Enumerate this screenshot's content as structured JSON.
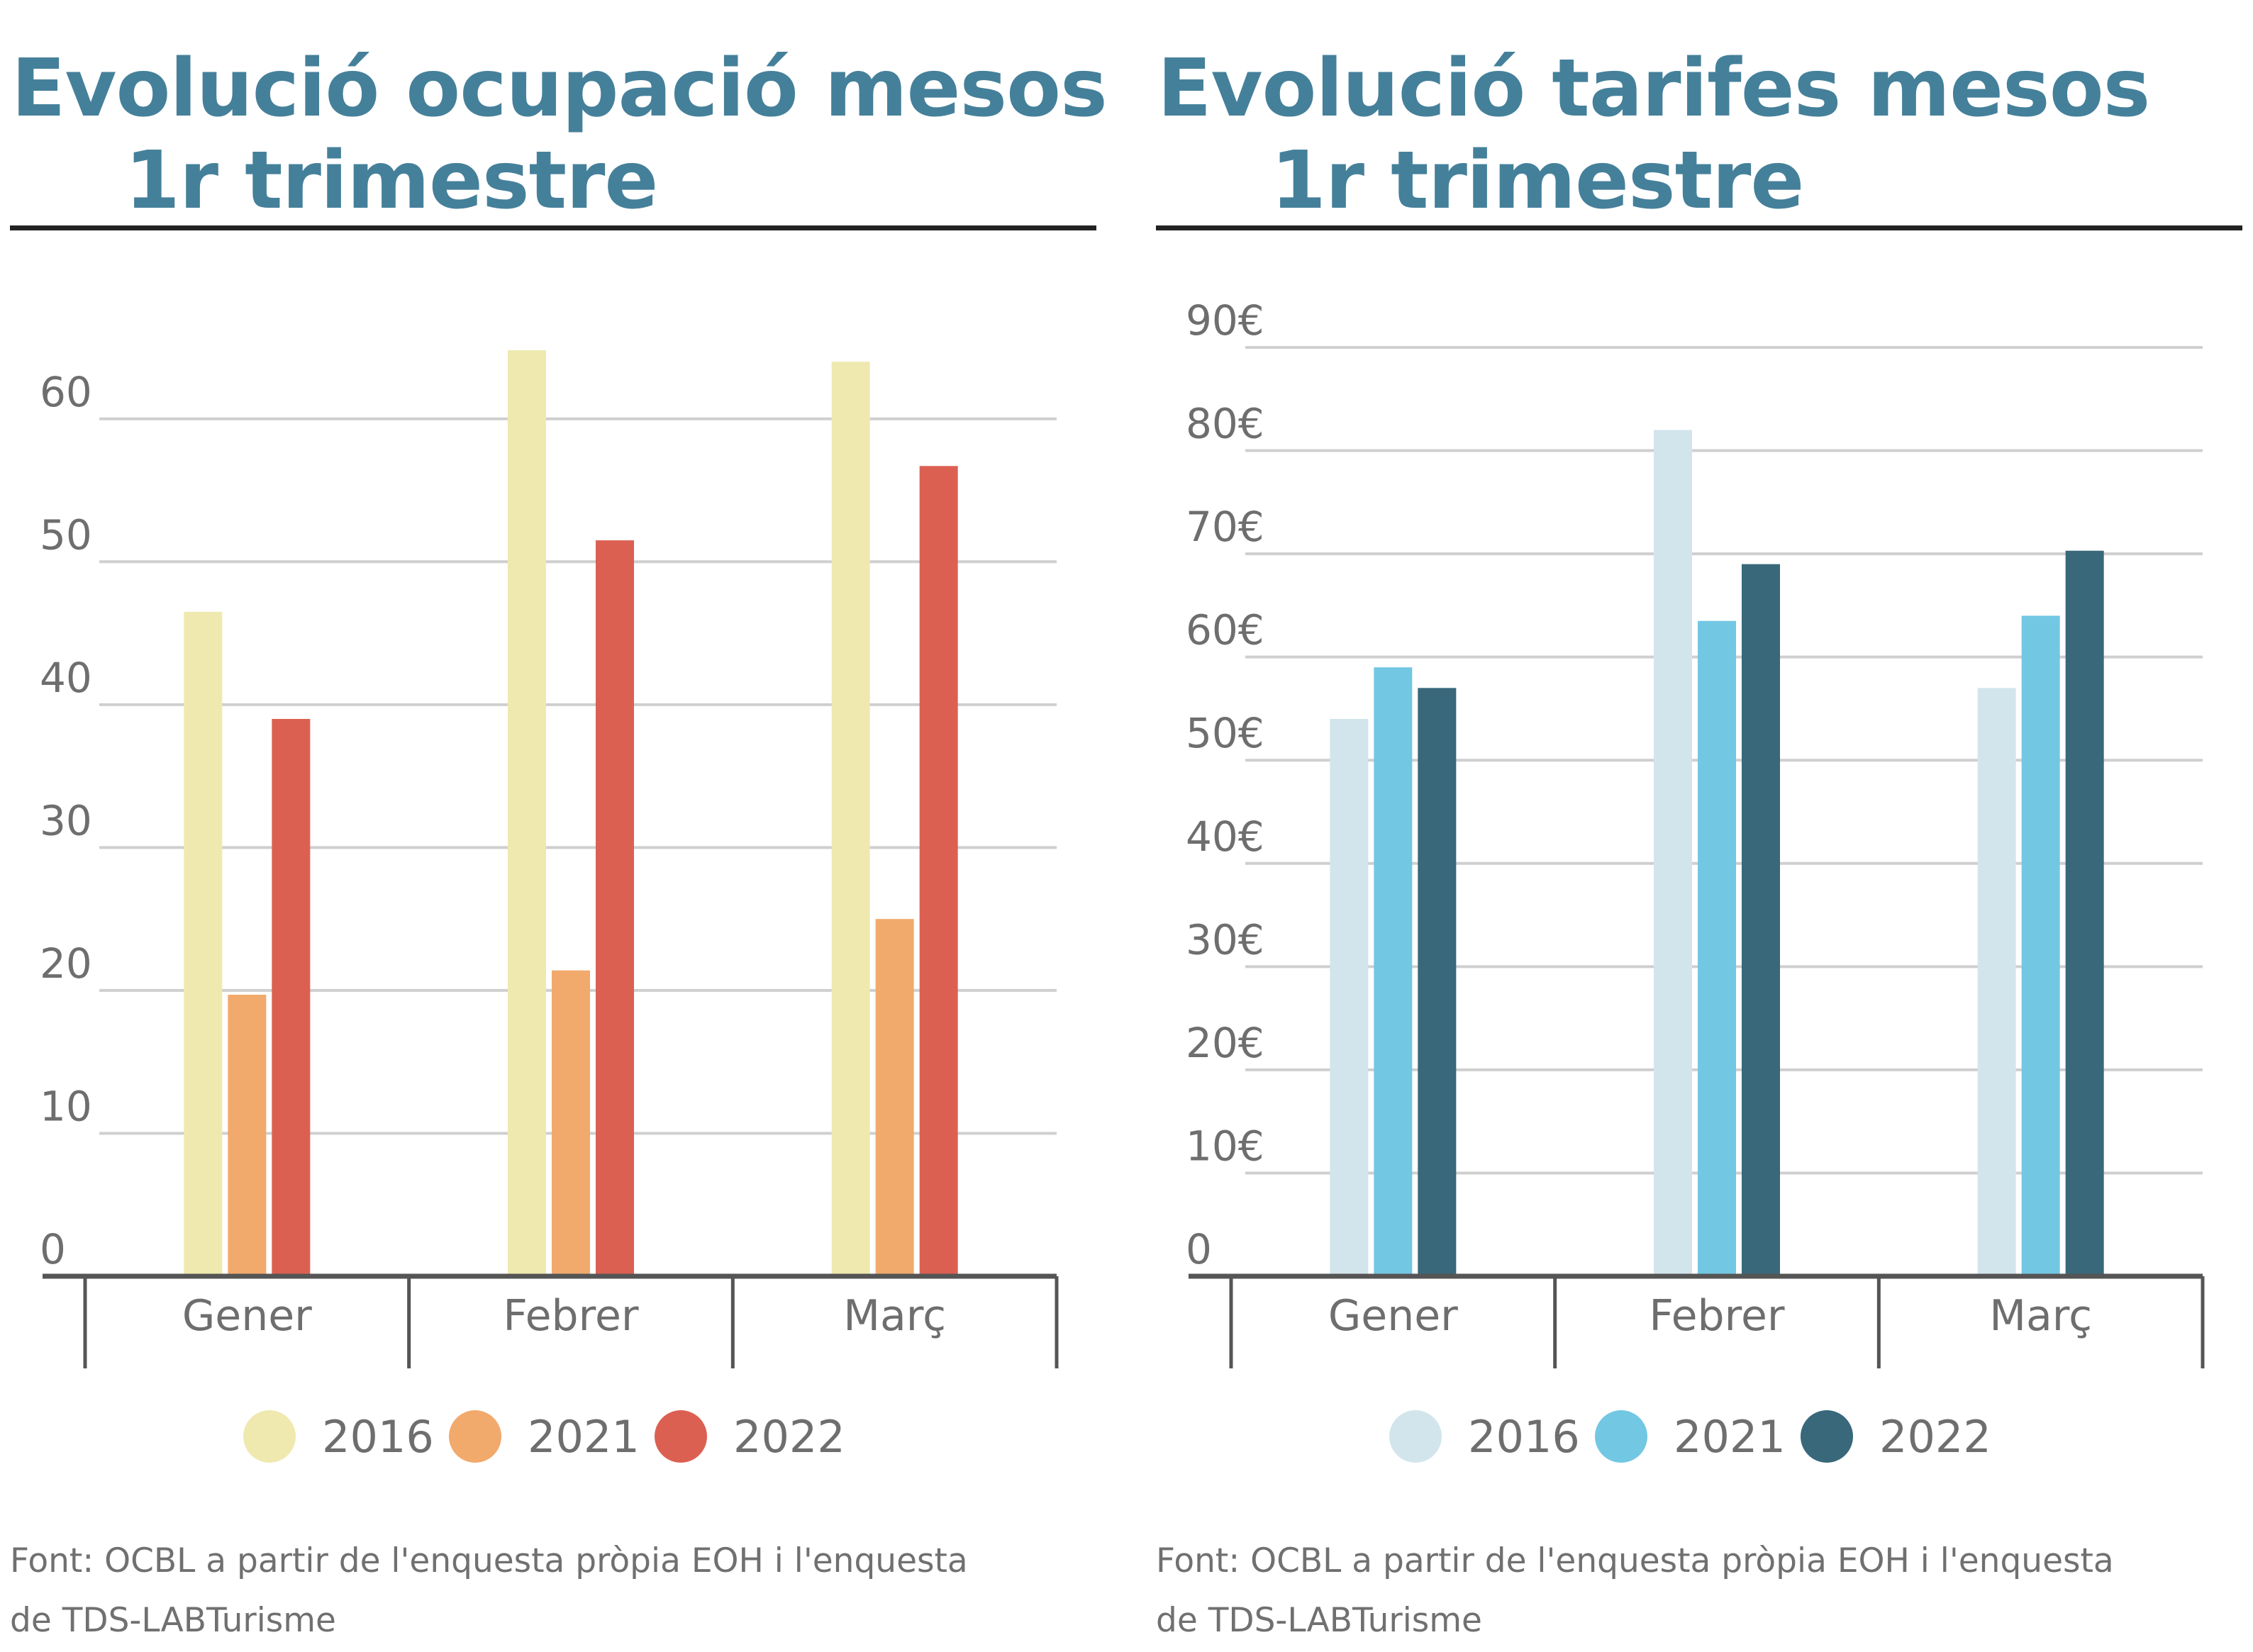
{
  "colors": {
    "title": "#45809a",
    "axis_text": "#6e6e6e",
    "grid": "#cfcfcf",
    "axis": "#555555"
  },
  "source": "Font: OCBL a partir de l'enquesta pròpia EOH i l'enquesta de TDS-LABTurisme",
  "chart_data": [
    {
      "type": "bar",
      "title_line1": "Evolució ocupació mesos",
      "title_line2": "1r trimestre",
      "categories": [
        "Gener",
        "Febrer",
        "Març"
      ],
      "series": [
        {
          "name": "2016",
          "color": "#efe9b0",
          "values": [
            46.5,
            64.8,
            64.0
          ]
        },
        {
          "name": "2021",
          "color": "#f1aa6c",
          "values": [
            19.7,
            21.4,
            25.0
          ]
        },
        {
          "name": "2022",
          "color": "#dc6052",
          "values": [
            39.0,
            51.5,
            56.7
          ]
        }
      ],
      "ylim": [
        0,
        65
      ],
      "yticks": [
        0,
        10,
        20,
        30,
        40,
        50,
        60
      ],
      "ytick_labels": [
        "0",
        "10",
        "20",
        "30",
        "40",
        "50",
        "60"
      ],
      "grid": true,
      "legend_position": "bottom"
    },
    {
      "type": "bar",
      "title_line1": "Evolució tarifes mesos",
      "title_line2": "1r trimestre",
      "categories": [
        "Gener",
        "Febrer",
        "Març"
      ],
      "series": [
        {
          "name": "2016",
          "color": "#d3e5ec",
          "values": [
            54,
            82,
            57
          ]
        },
        {
          "name": "2021",
          "color": "#72c7e3",
          "values": [
            59,
            63.5,
            64
          ]
        },
        {
          "name": "2022",
          "color": "#38687a",
          "values": [
            57,
            69,
            70.3
          ]
        }
      ],
      "ylim": [
        0,
        90
      ],
      "yticks": [
        0,
        10,
        20,
        30,
        40,
        50,
        60,
        70,
        80,
        90
      ],
      "ytick_labels": [
        "0",
        "10€",
        "20€",
        "30€",
        "40€",
        "50€",
        "60€",
        "70€",
        "80€",
        "90€"
      ],
      "grid": true,
      "legend_position": "bottom"
    }
  ]
}
